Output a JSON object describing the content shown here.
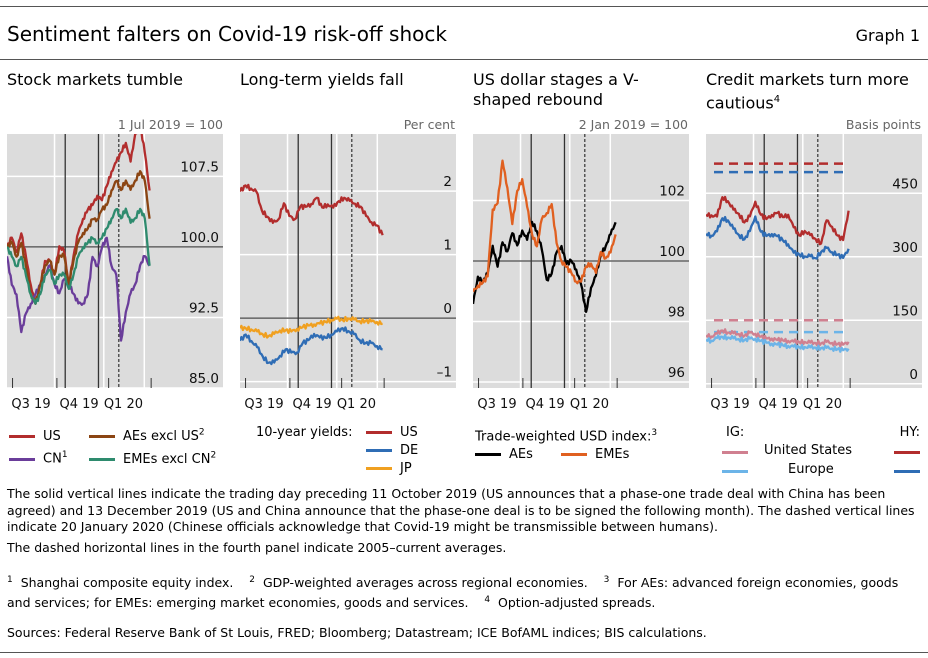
{
  "header": {
    "title": "Sentiment falters on Covid-19 risk-off shock",
    "graph_number": "Graph 1"
  },
  "chart_data": [
    {
      "type": "line",
      "title": "Stock markets tumble",
      "unit": "1 Jul 2019 = 100",
      "ylim": [
        85,
        112
      ],
      "yticks": [
        "107.5",
        "100.0",
        "92.5",
        "85.0"
      ],
      "ytick_values": [
        107.5,
        100,
        92.5,
        85
      ],
      "xticks": [
        "Q3 19",
        "Q4 19",
        "Q1 20"
      ],
      "x_range": [
        "2019-07-01",
        "2020-03-31"
      ],
      "reference_line": 100,
      "series": [
        {
          "name": "US",
          "color": "#b22d2d",
          "values": [
            100,
            101,
            99.5,
            101.5,
            99,
            96,
            94,
            96,
            98.5,
            98.5,
            97,
            100,
            99.5,
            96,
            99,
            101.5,
            103,
            104,
            104.5,
            105.5,
            105,
            106.5,
            108,
            109,
            110,
            111,
            109,
            112,
            113,
            110,
            106
          ]
        },
        {
          "name": "CN",
          "sup": "1",
          "color": "#6a3d9a",
          "values": [
            99,
            96,
            95,
            91,
            93,
            94,
            95,
            96,
            97,
            98,
            96,
            95,
            96.5,
            96,
            95,
            94,
            94,
            95,
            99,
            98,
            100,
            101,
            98,
            97,
            90,
            93,
            95,
            96,
            98,
            99,
            98
          ]
        },
        {
          "name": "AEs excl US",
          "sup": "2",
          "color": "#8b4513",
          "values": [
            100,
            100.5,
            99,
            100.5,
            98,
            95,
            94,
            96,
            98,
            98.5,
            97,
            99,
            99,
            96,
            98.5,
            100.5,
            101.5,
            102,
            103,
            103,
            104,
            104.5,
            106,
            107,
            106,
            107,
            106,
            107,
            108,
            107,
            103
          ]
        },
        {
          "name": "EMEs excl CN",
          "sup": "2",
          "color": "#2e8b6e",
          "values": [
            100,
            99,
            98,
            99,
            97,
            95,
            94,
            95,
            97,
            97.5,
            96,
            97,
            97,
            95.5,
            97,
            99,
            100,
            100.5,
            101,
            100.5,
            101,
            102,
            103,
            104,
            103,
            104,
            102.5,
            103,
            104,
            103,
            98
          ]
        }
      ],
      "legend": [
        {
          "label": "US",
          "color": "#b22d2d"
        },
        {
          "label": "CN",
          "sup": "1",
          "color": "#6a3d9a"
        },
        {
          "label": "AEs excl US",
          "sup": "2",
          "color": "#8b4513"
        },
        {
          "label": "EMEs excl CN",
          "sup": "2",
          "color": "#2e8b6e"
        }
      ]
    },
    {
      "type": "line",
      "title": "Long-term yields fall",
      "unit": "Per cent",
      "ylim": [
        -1.1,
        2.9
      ],
      "yticks": [
        "2",
        "1",
        "0",
        "–1"
      ],
      "ytick_values": [
        2,
        1,
        0,
        -1
      ],
      "xticks": [
        "Q3 19",
        "Q4 19",
        "Q1 20"
      ],
      "x_range": [
        "2019-07-01",
        "2020-03-31"
      ],
      "reference_line": 0,
      "legend_prefix": "10-year yields:",
      "series": [
        {
          "name": "US",
          "color": "#b22d2d",
          "values": [
            2.0,
            2.1,
            2.05,
            2.0,
            1.7,
            1.6,
            1.5,
            1.55,
            1.8,
            1.6,
            1.55,
            1.75,
            1.75,
            1.8,
            1.9,
            1.75,
            1.8,
            1.75,
            1.85,
            1.9,
            1.85,
            1.8,
            1.75,
            1.6,
            1.5,
            1.45,
            1.3
          ]
        },
        {
          "name": "DE",
          "color": "#2f6db5",
          "values": [
            -0.35,
            -0.25,
            -0.35,
            -0.45,
            -0.6,
            -0.7,
            -0.7,
            -0.6,
            -0.5,
            -0.55,
            -0.55,
            -0.4,
            -0.35,
            -0.25,
            -0.3,
            -0.3,
            -0.25,
            -0.2,
            -0.15,
            -0.2,
            -0.25,
            -0.35,
            -0.4,
            -0.4,
            -0.45,
            -0.5
          ]
        },
        {
          "name": "JP",
          "color": "#f0a020",
          "values": [
            -0.15,
            -0.15,
            -0.17,
            -0.2,
            -0.25,
            -0.28,
            -0.25,
            -0.2,
            -0.2,
            -0.22,
            -0.18,
            -0.15,
            -0.12,
            -0.1,
            -0.08,
            -0.05,
            -0.02,
            0.0,
            -0.02,
            0.0,
            -0.02,
            -0.05,
            -0.05,
            -0.06,
            -0.07,
            -0.1
          ]
        }
      ],
      "legend": [
        {
          "label": "US",
          "color": "#b22d2d"
        },
        {
          "label": "DE",
          "color": "#2f6db5"
        },
        {
          "label": "JP",
          "color": "#f0a020"
        }
      ]
    },
    {
      "type": "line",
      "title": "US dollar stages a V-shaped rebound",
      "unit": "2 Jan 2019 = 100",
      "ylim": [
        95.8,
        104.2
      ],
      "yticks": [
        "102",
        "100",
        "98",
        "96"
      ],
      "ytick_values": [
        102,
        100,
        98,
        96
      ],
      "xticks": [
        "Q3 19",
        "Q4 19",
        "Q1 20"
      ],
      "x_range": [
        "2019-07-01",
        "2020-03-31"
      ],
      "reference_line": 100,
      "legend_prefix": "Trade-weighted USD index:",
      "legend_prefix_sup": "3",
      "series": [
        {
          "name": "AEs",
          "color": "#000000",
          "values": [
            98.6,
            99.5,
            99.3,
            99.6,
            100.5,
            99.8,
            100.6,
            100.3,
            100.9,
            100.5,
            101,
            100.7,
            101.3,
            101,
            100.4,
            99.4,
            99.6,
            100.3,
            100.5,
            99.9,
            100,
            99.7,
            99.2,
            98.3,
            99.1,
            99.5,
            100.2,
            100.5,
            100.9,
            101.3
          ]
        },
        {
          "name": "EMEs",
          "color": "#e06020",
          "values": [
            99,
            99.2,
            99.3,
            99.5,
            101.7,
            101.9,
            103.3,
            102.4,
            101.2,
            102.3,
            102.7,
            101.8,
            100.9,
            100.5,
            101.4,
            101.6,
            101.9,
            100.6,
            100,
            99.8,
            99.6,
            99.3,
            99.3,
            99.8,
            99.9,
            99.6,
            100.3,
            100.1,
            100.3,
            100.9
          ]
        }
      ],
      "legend": [
        {
          "label": "AEs",
          "color": "#000000"
        },
        {
          "label": "EMEs",
          "color": "#e06020"
        }
      ]
    },
    {
      "type": "line",
      "title": "Credit markets turn more cautious",
      "title_sup": "4",
      "unit": "Basis points",
      "ylim": [
        -10,
        590
      ],
      "yticks": [
        "450",
        "300",
        "150",
        "0"
      ],
      "ytick_values": [
        450,
        300,
        150,
        0
      ],
      "xticks": [
        "Q3 19",
        "Q4 19",
        "Q1 20"
      ],
      "x_range": [
        "2019-07-01",
        "2020-03-31"
      ],
      "series": [
        {
          "name": "HY United States",
          "color": "#b22d2d",
          "values": [
            400,
            398,
            395,
            440,
            430,
            410,
            400,
            380,
            395,
            430,
            400,
            390,
            400,
            405,
            395,
            400,
            370,
            350,
            360,
            350,
            340,
            330,
            385,
            370,
            350,
            340,
            410
          ]
        },
        {
          "name": "HY Europe",
          "color": "#2f6db5",
          "values": [
            355,
            350,
            360,
            390,
            385,
            365,
            350,
            340,
            360,
            395,
            360,
            350,
            355,
            350,
            340,
            330,
            310,
            305,
            300,
            300,
            295,
            310,
            320,
            310,
            305,
            298,
            320
          ]
        },
        {
          "name": "IG United States",
          "color": "#d08090",
          "values": [
            115,
            112,
            118,
            125,
            120,
            118,
            116,
            112,
            120,
            118,
            112,
            108,
            108,
            105,
            104,
            102,
            100,
            98,
            98,
            96,
            95,
            94,
            98,
            96,
            94,
            93,
            100
          ]
        },
        {
          "name": "IG Europe",
          "color": "#6cb4e8",
          "values": [
            105,
            102,
            108,
            110,
            108,
            106,
            104,
            102,
            106,
            106,
            102,
            98,
            96,
            94,
            92,
            90,
            88,
            86,
            86,
            85,
            84,
            83,
            84,
            83,
            82,
            80,
            84
          ]
        }
      ],
      "averages": [
        {
          "name": "HY United States 2005–current average",
          "value": 520,
          "color": "#b22d2d"
        },
        {
          "name": "HY Europe 2005–current average",
          "value": 500,
          "color": "#2f6db5"
        },
        {
          "name": "IG United States 2005–current average",
          "value": 150,
          "color": "#d08090"
        },
        {
          "name": "IG Europe 2005–current average",
          "value": 122,
          "color": "#6cb4e8"
        }
      ],
      "legend": {
        "ig_label": "IG:",
        "hy_label": "HY:",
        "rows": [
          {
            "label": "United States",
            "ig_color": "#d08090",
            "hy_color": "#b22d2d"
          },
          {
            "label": "Europe",
            "ig_color": "#6cb4e8",
            "hy_color": "#2f6db5"
          }
        ]
      }
    }
  ],
  "event_lines": {
    "solid": [
      "10 Oct 2019",
      "12 Dec 2019"
    ],
    "dashed": [
      "20 Jan 2020"
    ]
  },
  "notes": {
    "main": "The solid vertical lines indicate the trading day preceding 11 October 2019 (US announces that a phase-one trade deal with China has been agreed) and 13 December 2019 (US and China announce that the phase-one deal is to be signed the following month). The dashed vertical lines indicate 20 January 2020 (Chinese officials acknowledge that Covid-19 might be transmissible between humans).",
    "dashed": "The dashed horizontal lines in the fourth panel indicate 2005–current averages.",
    "footnotes": [
      {
        "num": "1",
        "text": "Shanghai composite equity index."
      },
      {
        "num": "2",
        "text": "GDP-weighted averages across regional economies."
      },
      {
        "num": "3",
        "text": "For AEs: advanced foreign economies, goods and services; for EMEs: emerging market economies, goods and services."
      },
      {
        "num": "4",
        "text": "Option-adjusted spreads."
      }
    ],
    "sources": "Sources: Federal Reserve Bank of St Louis, FRED; Bloomberg; Datastream; ICE BofAML indices; BIS calculations."
  }
}
